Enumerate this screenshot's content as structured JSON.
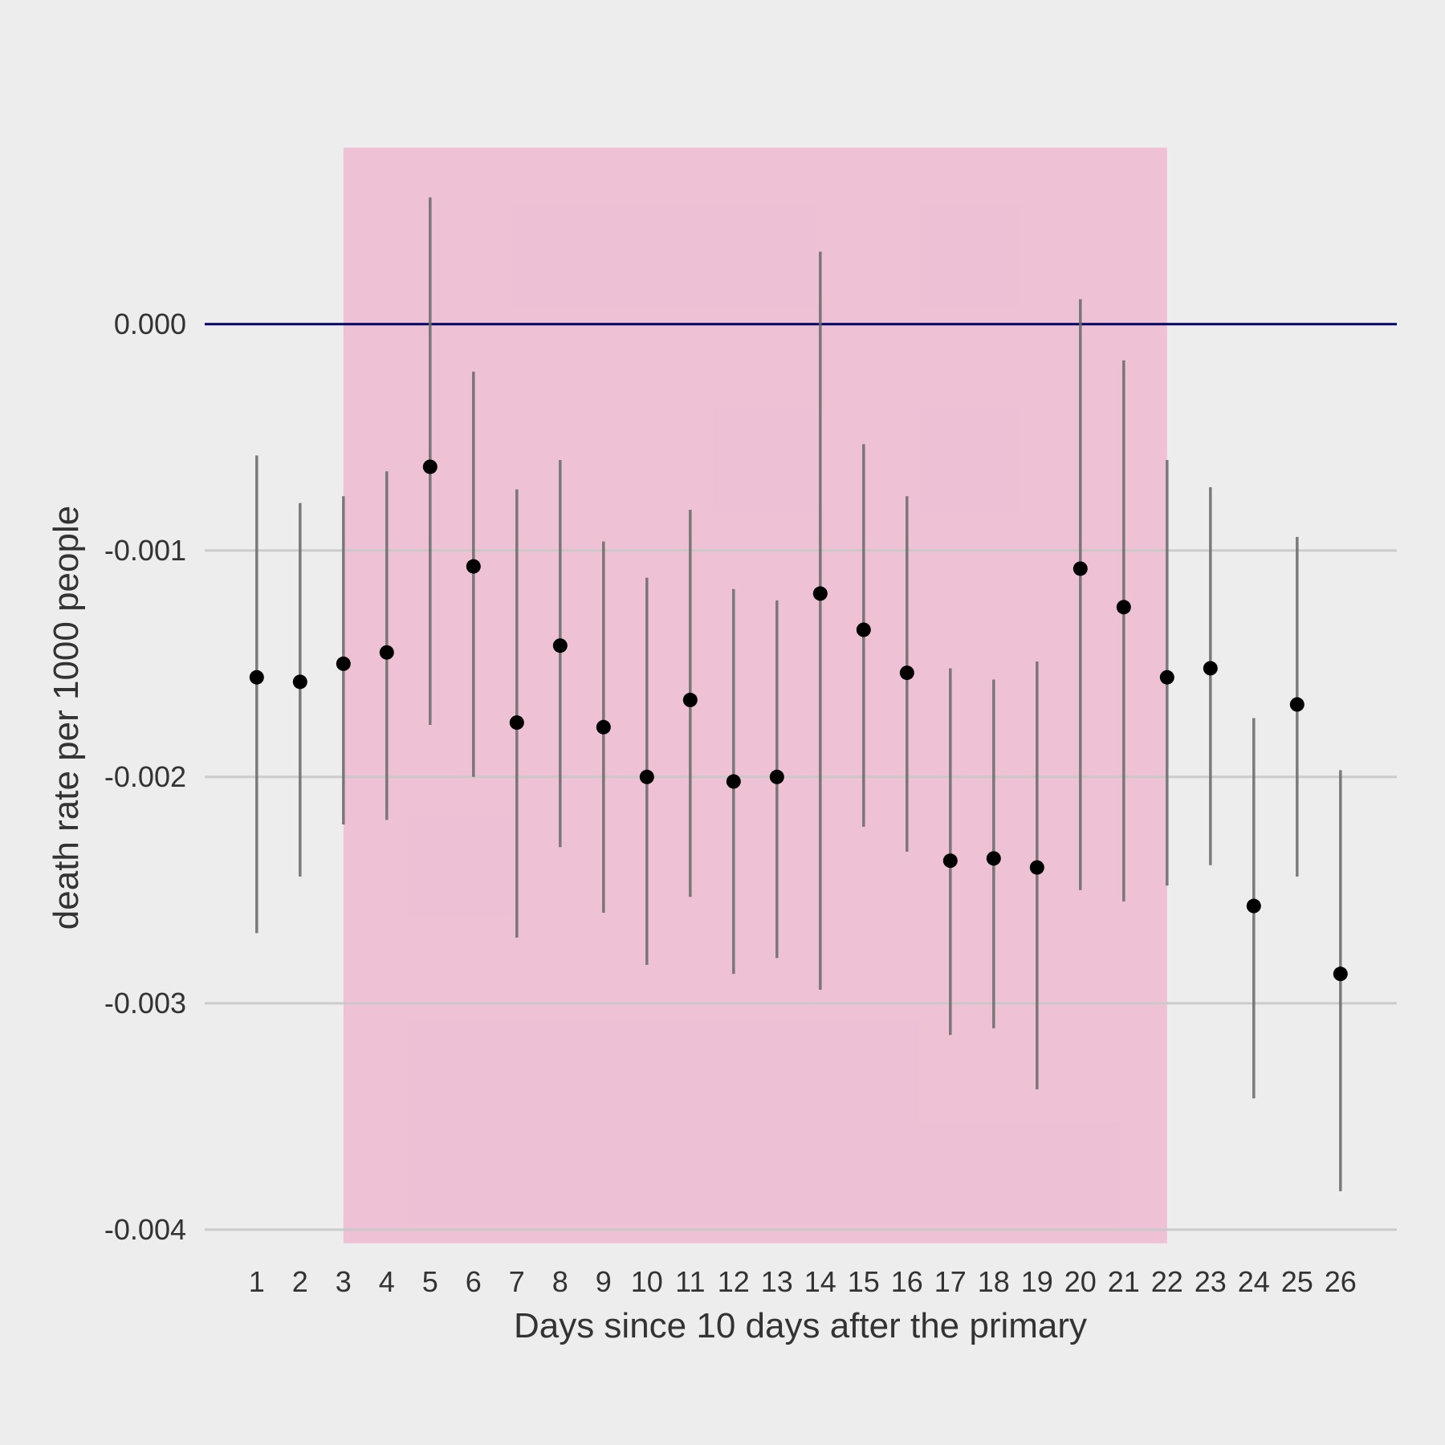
{
  "chart_data": {
    "type": "scatter",
    "title": "",
    "xlabel": "Days since 10 days after the primary",
    "ylabel": "death rate per 1000 people",
    "x": [
      1,
      2,
      3,
      4,
      5,
      6,
      7,
      8,
      9,
      10,
      11,
      12,
      13,
      14,
      15,
      16,
      17,
      18,
      19,
      20,
      21,
      22,
      23,
      24,
      25,
      26
    ],
    "x_tick_labels": [
      "1",
      "2",
      "3",
      "4",
      "5",
      "6",
      "7",
      "8",
      "9",
      "10",
      "11",
      "12",
      "13",
      "14",
      "15",
      "16",
      "17",
      "18",
      "19",
      "20",
      "21",
      "22",
      "23",
      "24",
      "25",
      "26"
    ],
    "y": [
      -0.00156,
      -0.00158,
      -0.0015,
      -0.00145,
      -0.00063,
      -0.00107,
      -0.00176,
      -0.00142,
      -0.00178,
      -0.002,
      -0.00166,
      -0.00202,
      -0.002,
      -0.00119,
      -0.00135,
      -0.00154,
      -0.00237,
      -0.00236,
      -0.0024,
      -0.00108,
      -0.00125,
      -0.00156,
      -0.00152,
      -0.00257,
      -0.00168,
      -0.00287
    ],
    "y_lower": [
      -0.00269,
      -0.00244,
      -0.00221,
      -0.00219,
      -0.00177,
      -0.002,
      -0.00271,
      -0.00231,
      -0.0026,
      -0.00283,
      -0.00253,
      -0.00287,
      -0.0028,
      -0.00294,
      -0.00222,
      -0.00233,
      -0.00314,
      -0.00311,
      -0.00338,
      -0.0025,
      -0.00255,
      -0.00248,
      -0.00239,
      -0.00342,
      -0.00244,
      -0.00383
    ],
    "y_upper": [
      -0.00058,
      -0.00079,
      -0.00076,
      -0.00065,
      0.00056,
      -0.00021,
      -0.00073,
      -0.0006,
      -0.00096,
      -0.00112,
      -0.00082,
      -0.00117,
      -0.00122,
      0.00032,
      -0.00053,
      -0.00076,
      -0.00152,
      -0.00157,
      -0.00149,
      0.00011,
      -0.00016,
      -0.0006,
      -0.00072,
      -0.00174,
      -0.00094,
      -0.00197
    ],
    "y_ticks": [
      0,
      -0.001,
      -0.002,
      -0.003,
      -0.004
    ],
    "y_tick_labels": [
      "0.000",
      "-0.001",
      "-0.002",
      "-0.003",
      "-0.004"
    ],
    "xlim": [
      -0.2,
      27.3
    ],
    "ylim": [
      -0.0041,
      0.0009
    ],
    "reference_line": {
      "y": 0,
      "color": "#000066"
    },
    "shaded_region": {
      "x_start": 3,
      "x_end": 22,
      "y_start": -0.00406,
      "y_end": 0.00078,
      "color": "#ee9cc1"
    },
    "grid": {
      "horizontal": true,
      "vertical": false,
      "color": "#c8c8c8"
    },
    "colors": {
      "background": "#ededed",
      "point": "#000000",
      "errorbar": "#6e6e6e",
      "text": "#333333"
    }
  }
}
